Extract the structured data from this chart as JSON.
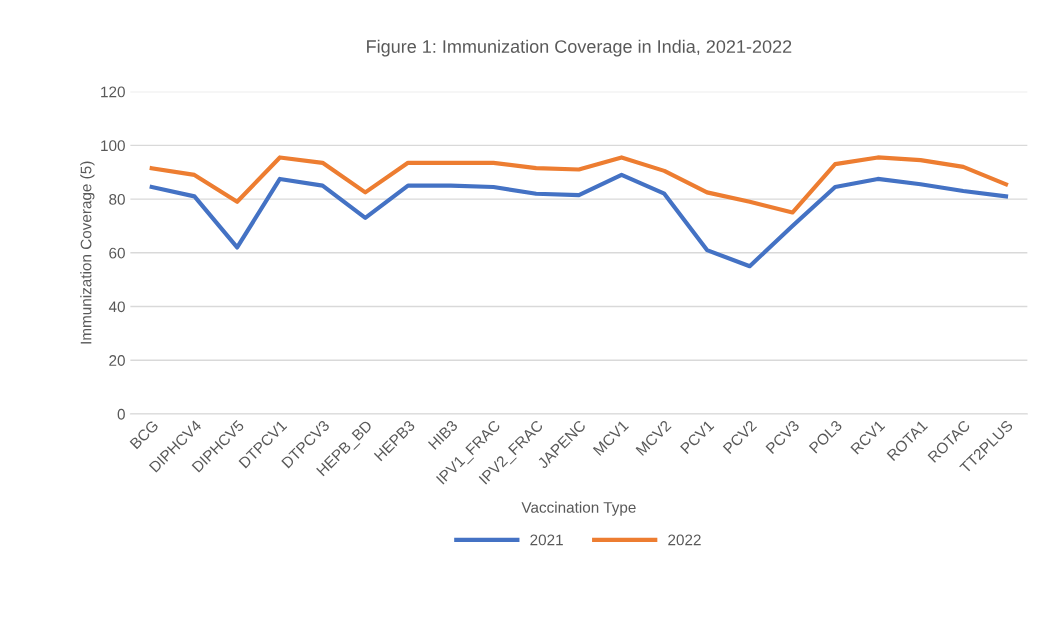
{
  "chart_data": {
    "type": "line",
    "title": "Figure 1: Immunization Coverage in India, 2021-2022",
    "xlabel": "Vaccination Type",
    "ylabel": "Immunization Coverage (5)",
    "categories": [
      "BCG",
      "DIPHCV4",
      "DIPHCV5",
      "DTPCV1",
      "DTPCV3",
      "HEPB_BD",
      "HEPB3",
      "HIB3",
      "IPV1_FRAC",
      "IPV2_FRAC",
      "JAPENC",
      "MCV1",
      "MCV2",
      "PCV1",
      "PCV2",
      "PCV3",
      "POL3",
      "RCV1",
      "ROTA1",
      "ROTAC",
      "TT2PLUS"
    ],
    "series": [
      {
        "name": "2021",
        "color": "#4472c4",
        "values": [
          84.5,
          81,
          62,
          87.5,
          85,
          73,
          85,
          85,
          84.5,
          82,
          81.5,
          89,
          82,
          61,
          55,
          70,
          84.5,
          87.5,
          85.5,
          83,
          81
        ]
      },
      {
        "name": "2022",
        "color": "#ed7d31",
        "values": [
          91.5,
          89,
          79,
          95.5,
          93.5,
          82.5,
          93.5,
          93.5,
          93.5,
          91.5,
          91,
          95.5,
          90.5,
          82.5,
          79,
          75,
          93,
          95.5,
          94.5,
          92,
          85.5
        ]
      }
    ],
    "ylim": [
      0,
      120
    ],
    "yticks": [
      0,
      20,
      40,
      60,
      80,
      100,
      120
    ],
    "grid": "y",
    "legend": "bottom",
    "marker": "none",
    "line_style": "solid"
  }
}
